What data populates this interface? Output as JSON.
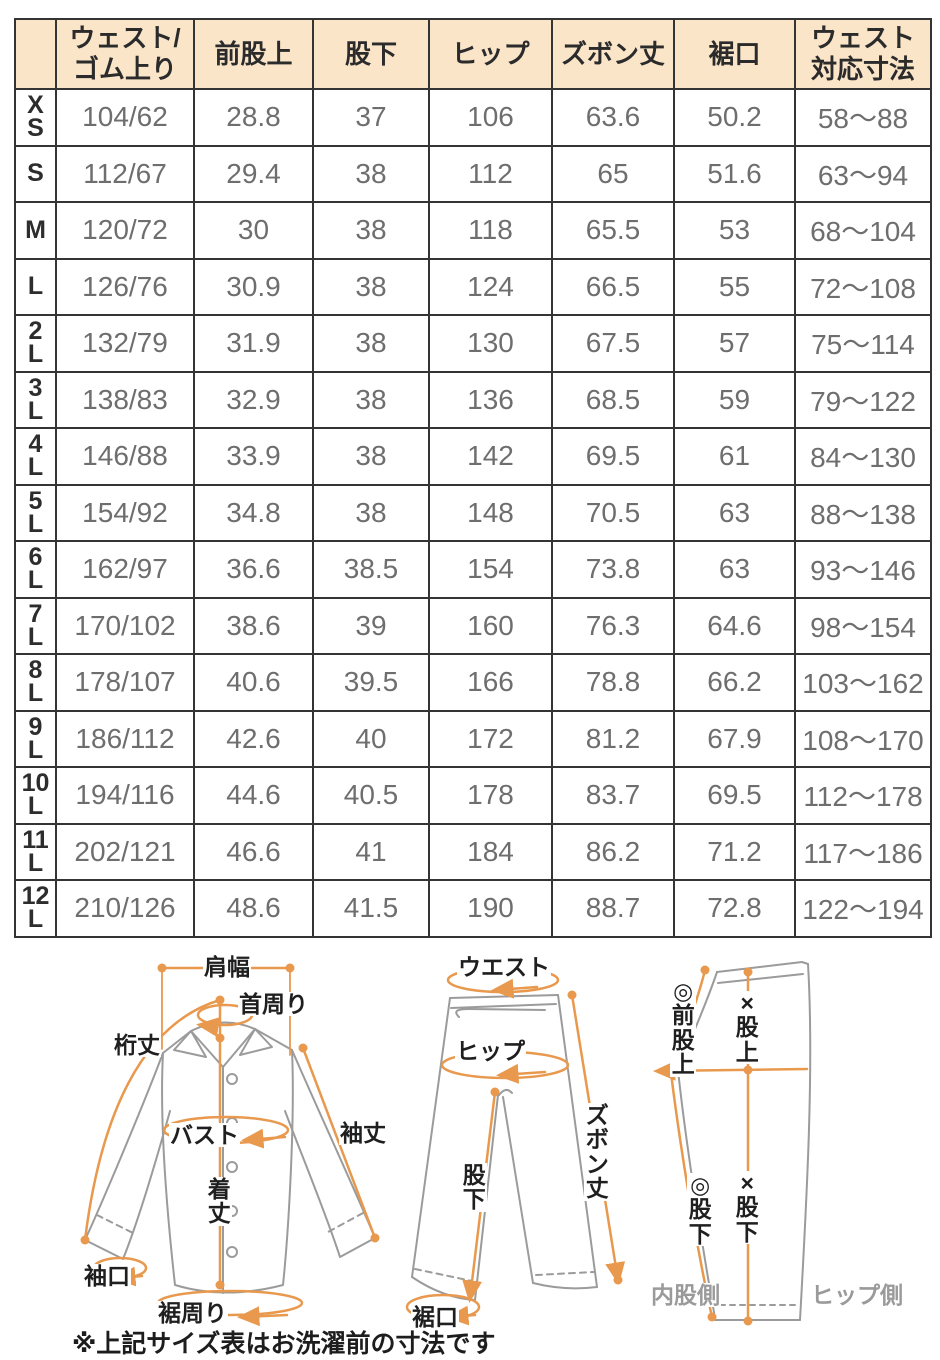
{
  "table": {
    "header": [
      [
        "ウェスト/",
        "ゴム上り"
      ],
      [
        "前股上"
      ],
      [
        "股下"
      ],
      [
        "ヒップ"
      ],
      [
        "ズボン丈"
      ],
      [
        "裾口"
      ],
      [
        "ウェスト",
        "対応寸法"
      ]
    ],
    "rows": [
      {
        "size": "XS",
        "values": [
          "104/62",
          "28.8",
          "37",
          "106",
          "63.6",
          "50.2",
          "58～88"
        ]
      },
      {
        "size": "S",
        "values": [
          "112/67",
          "29.4",
          "38",
          "112",
          "65",
          "51.6",
          "63～94"
        ]
      },
      {
        "size": "M",
        "values": [
          "120/72",
          "30",
          "38",
          "118",
          "65.5",
          "53",
          "68～104"
        ]
      },
      {
        "size": "L",
        "values": [
          "126/76",
          "30.9",
          "38",
          "124",
          "66.5",
          "55",
          "72～108"
        ]
      },
      {
        "size": "2L",
        "values": [
          "132/79",
          "31.9",
          "38",
          "130",
          "67.5",
          "57",
          "75～114"
        ]
      },
      {
        "size": "3L",
        "values": [
          "138/83",
          "32.9",
          "38",
          "136",
          "68.5",
          "59",
          "79～122"
        ]
      },
      {
        "size": "4L",
        "values": [
          "146/88",
          "33.9",
          "38",
          "142",
          "69.5",
          "61",
          "84～130"
        ]
      },
      {
        "size": "5L",
        "values": [
          "154/92",
          "34.8",
          "38",
          "148",
          "70.5",
          "63",
          "88～138"
        ]
      },
      {
        "size": "6L",
        "values": [
          "162/97",
          "36.6",
          "38.5",
          "154",
          "73.8",
          "63",
          "93～146"
        ]
      },
      {
        "size": "7L",
        "values": [
          "170/102",
          "38.6",
          "39",
          "160",
          "76.3",
          "64.6",
          "98～154"
        ]
      },
      {
        "size": "8L",
        "values": [
          "178/107",
          "40.6",
          "39.5",
          "166",
          "78.8",
          "66.2",
          "103～162"
        ]
      },
      {
        "size": "9L",
        "values": [
          "186/112",
          "42.6",
          "40",
          "172",
          "81.2",
          "67.9",
          "108～170"
        ]
      },
      {
        "size": "10L",
        "values": [
          "194/116",
          "44.6",
          "40.5",
          "178",
          "83.7",
          "69.5",
          "112～178"
        ]
      },
      {
        "size": "11L",
        "values": [
          "202/121",
          "46.6",
          "41",
          "184",
          "86.2",
          "71.2",
          "117～186"
        ]
      },
      {
        "size": "12L",
        "values": [
          "210/126",
          "48.6",
          "41.5",
          "190",
          "88.7",
          "72.8",
          "122～194"
        ]
      }
    ]
  },
  "diagrams": {
    "shirt": {
      "shoulder_width": "肩幅",
      "neck_around": "首周り",
      "yuki_length": "桁丈",
      "bust": "バスト",
      "sleeve_length": "袖丈",
      "body_length": "着丈",
      "cuff": "袖口",
      "hem_around": "裾周り"
    },
    "pants_front": {
      "waist": "ウエスト",
      "hip": "ヒップ",
      "pants_length": "ズボン丈",
      "inseam": "股下",
      "hem": "裾口"
    },
    "pants_side": {
      "front_rise": "◎前股上",
      "rise": "×股上",
      "inseam_front": "◎股下",
      "inseam_mid": "×股下",
      "inner_side": "内股側",
      "hip_side": "ヒップ側"
    }
  },
  "note": "※上記サイズ表はお洗濯前の寸法です",
  "colors": {
    "header_bg": "#fae5c9",
    "accent_orange": "#e8994e",
    "outline_gray": "#9b9b9b",
    "data_text": "#6e6e6e",
    "border": "#343434"
  }
}
